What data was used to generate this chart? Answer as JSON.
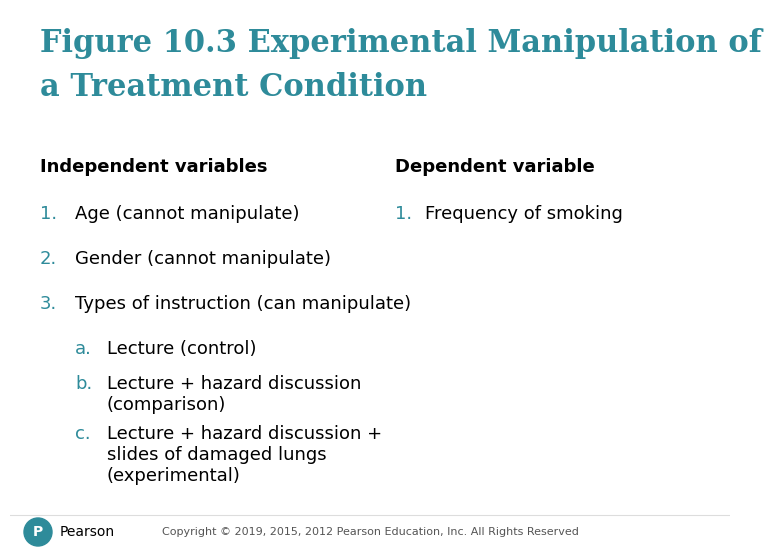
{
  "title_line1": "Figure 10.3 Experimental Manipulation of",
  "title_line2": "a Treatment Condition",
  "title_color": "#2e8b9a",
  "background_color": "#ffffff",
  "left_header": "Independent variables",
  "right_header": "Dependent variable",
  "header_color": "#000000",
  "teal_color": "#2e8b9a",
  "body_color": "#1a1a1a",
  "left_items": [
    {
      "num": "1.",
      "text": "Age (cannot manipulate)"
    },
    {
      "num": "2.",
      "text": "Gender (cannot manipulate)"
    },
    {
      "num": "3.",
      "text": "Types of instruction (can manipulate)"
    }
  ],
  "right_items": [
    {
      "num": "1.",
      "text": "Frequency of smoking"
    }
  ],
  "sub_items": [
    {
      "letter": "a.",
      "text": "Lecture (control)"
    },
    {
      "letter": "b.",
      "text": "Lecture + hazard discussion\n(comparison)"
    },
    {
      "letter": "c.",
      "text": "Lecture + hazard discussion +\nslides of damaged lungs\n(experimental)"
    }
  ],
  "footer_text": "Copyright © 2019, 2015, 2012 Pearson Education, Inc. All Rights Reserved",
  "footer_color": "#555555",
  "pearson_text": "Pearson"
}
